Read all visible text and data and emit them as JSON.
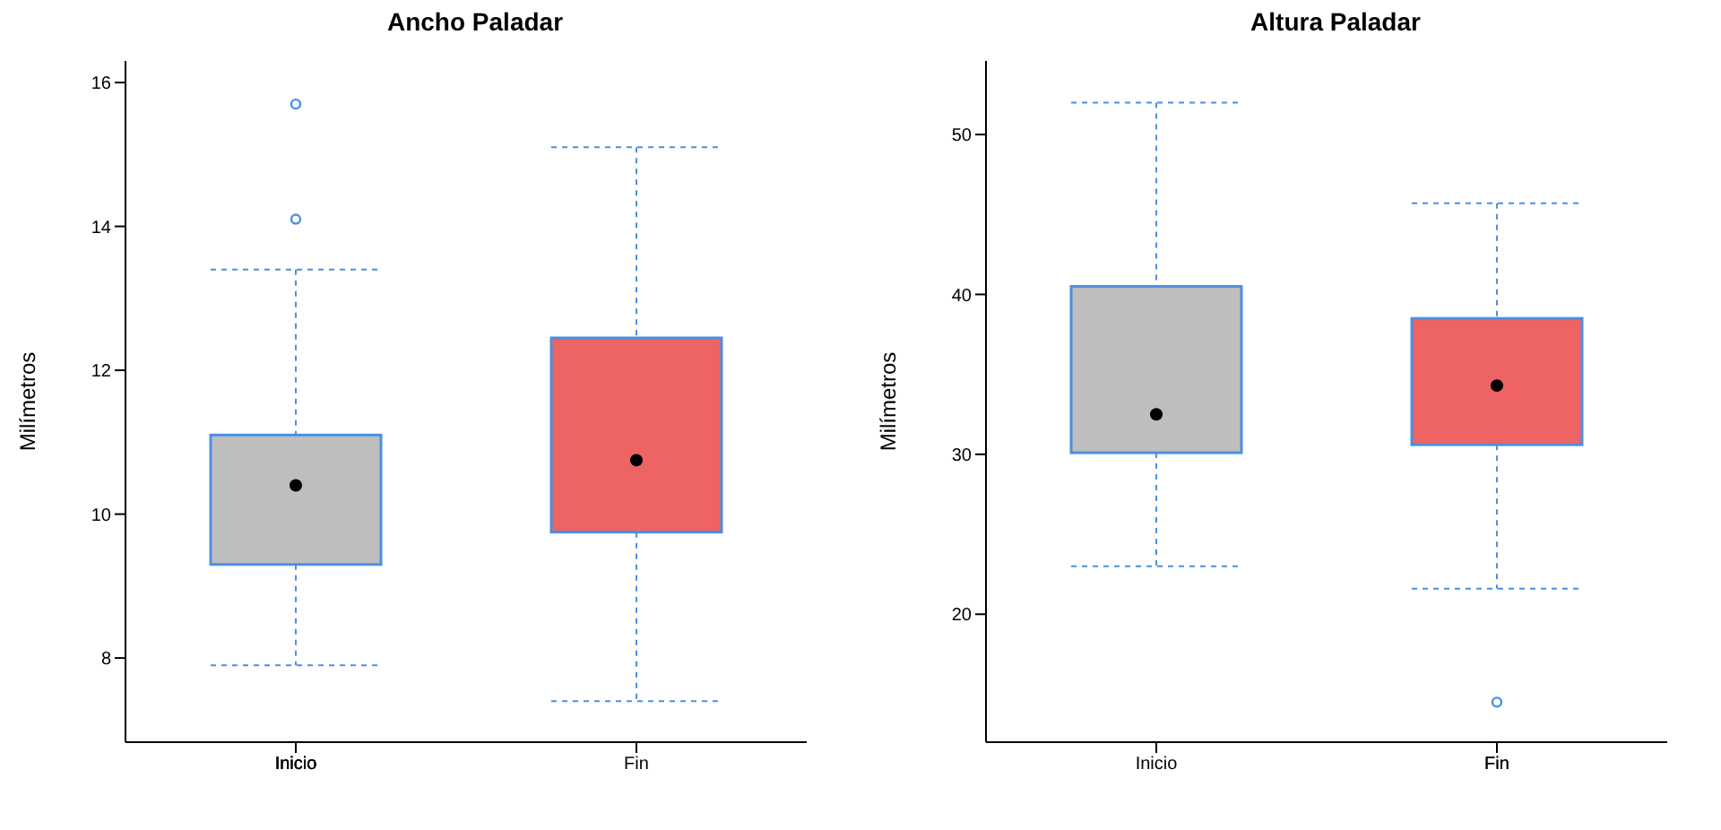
{
  "chart_data": [
    {
      "type": "box",
      "title": "Ancho Paladar",
      "ylabel": "Milímetros",
      "categories": [
        "Inicio",
        "Fin"
      ],
      "colors": [
        "#bebebe",
        "#ee6363"
      ],
      "ylim": [
        6.83,
        16.3
      ],
      "yticks": [
        8,
        10,
        12,
        14,
        16
      ],
      "boxes": [
        {
          "low": 7.9,
          "q1": 9.3,
          "median": 10.4,
          "q3": 11.1,
          "high": 13.4,
          "outliers": [
            14.1,
            15.7
          ]
        },
        {
          "low": 7.4,
          "q1": 9.75,
          "median": 10.75,
          "q3": 12.45,
          "high": 15.1
        }
      ]
    },
    {
      "type": "box",
      "title": "Altura Paladar",
      "ylabel": "Milímetros",
      "categories": [
        "Inicio",
        "Fin"
      ],
      "colors": [
        "#bebebe",
        "#ee6363"
      ],
      "ylim": [
        12,
        54.6
      ],
      "yticks": [
        20,
        30,
        40,
        50
      ],
      "boxes": [
        {
          "low": 23,
          "q1": 30.1,
          "median": 32.5,
          "q3": 40.5,
          "high": 52
        },
        {
          "low": 21.6,
          "q1": 30.6,
          "median": 34.3,
          "q3": 38.5,
          "high": 45.7,
          "outliers": [
            14.5
          ]
        }
      ]
    }
  ]
}
